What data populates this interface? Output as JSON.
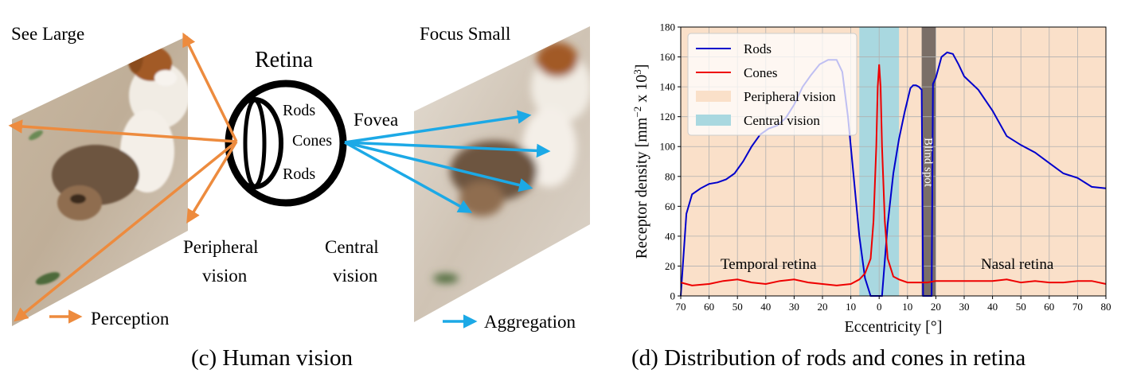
{
  "left_panel": {
    "see_large": "See Large",
    "focus_small": "Focus Small",
    "retina": "Retina",
    "rods_top": "Rods",
    "cones": "Cones",
    "rods_bottom": "Rods",
    "fovea": "Fovea",
    "peripheral_1": "Peripheral",
    "peripheral_2": "vision",
    "central_1": "Central",
    "central_2": "vision",
    "perception": "Perception",
    "aggregation": "Aggregation",
    "caption": "(c) Human vision",
    "colors": {
      "perception_arrow": "#ed8b3e",
      "aggregation_arrow": "#1ca9e6"
    }
  },
  "right_panel": {
    "caption": "(d) Distribution of rods and cones in retina"
  },
  "chart_data": {
    "type": "line",
    "xlabel": "Eccentricity [°]",
    "ylabel": "Receptor density [mm",
    "ylabel_sup1": "−2",
    "ylabel_mid": " x 10",
    "ylabel_sup2": "3",
    "ylabel_end": "]",
    "xlim": [
      70,
      80
    ],
    "x_order": "temporal-to-nasal",
    "x_ticks": [
      "70",
      "60",
      "50",
      "40",
      "30",
      "20",
      "10",
      "0",
      "10",
      "20",
      "30",
      "40",
      "50",
      "60",
      "70",
      "80"
    ],
    "ylim": [
      0,
      180
    ],
    "y_ticks": [
      "0",
      "20",
      "40",
      "60",
      "80",
      "100",
      "120",
      "140",
      "160",
      "180"
    ],
    "grid": true,
    "legend_position": "top-left",
    "legend": [
      "Rods",
      "Cones",
      "Peripheral vision",
      "Central vision"
    ],
    "annotations": {
      "temporal": "Temporal retina",
      "nasal": "Nasal retina",
      "blind_spot": "Blind spot"
    },
    "colors": {
      "rods": "#0000cc",
      "cones": "#ee0000",
      "peripheral": "#fae0c9",
      "central": "#a9d8e0",
      "blind_spot": "#7a6e67"
    },
    "regions": {
      "central_vision": [
        -7,
        7
      ],
      "blind_spot": [
        15,
        20
      ]
    },
    "series": [
      {
        "name": "Rods",
        "x": [
          -70,
          -68,
          -66,
          -63,
          -60,
          -57,
          -54,
          -51,
          -48,
          -45,
          -42,
          -39,
          -36,
          -33,
          -30,
          -27,
          -24,
          -21,
          -18,
          -15,
          -13,
          -11,
          -9,
          -7,
          -5,
          -3,
          -1,
          0,
          1,
          3,
          5,
          7,
          9,
          11,
          12,
          13,
          14,
          15,
          15.5,
          18.5,
          19,
          20,
          22,
          24,
          26,
          28,
          30,
          35,
          40,
          45,
          50,
          55,
          60,
          65,
          70,
          75,
          80
        ],
        "y": [
          0,
          55,
          68,
          72,
          75,
          76,
          78,
          82,
          90,
          100,
          108,
          112,
          114,
          119,
          128,
          140,
          148,
          155,
          158,
          158,
          150,
          120,
          80,
          40,
          12,
          0,
          0,
          0,
          0,
          48,
          82,
          105,
          123,
          139,
          141,
          141,
          140,
          138,
          0,
          0,
          142,
          146,
          160,
          163,
          162,
          155,
          147,
          138,
          124,
          107,
          101,
          96,
          89,
          82,
          79,
          73,
          72
        ]
      },
      {
        "name": "Cones",
        "x": [
          -70,
          -66,
          -60,
          -55,
          -50,
          -45,
          -40,
          -35,
          -30,
          -25,
          -20,
          -15,
          -10,
          -7,
          -5,
          -3,
          -2,
          -1,
          -0.5,
          0,
          0.5,
          1,
          2,
          3,
          5,
          7,
          10,
          14,
          17,
          20,
          25,
          30,
          35,
          40,
          45,
          50,
          55,
          60,
          65,
          70,
          75,
          80
        ],
        "y": [
          9,
          7,
          8,
          10,
          11,
          9,
          8,
          10,
          11,
          9,
          8,
          7,
          8,
          11,
          15,
          25,
          50,
          100,
          140,
          155,
          140,
          100,
          50,
          25,
          13,
          11,
          9,
          9,
          9,
          10,
          10,
          10,
          10,
          10,
          11,
          9,
          10,
          9,
          9,
          10,
          10,
          8
        ]
      }
    ]
  }
}
